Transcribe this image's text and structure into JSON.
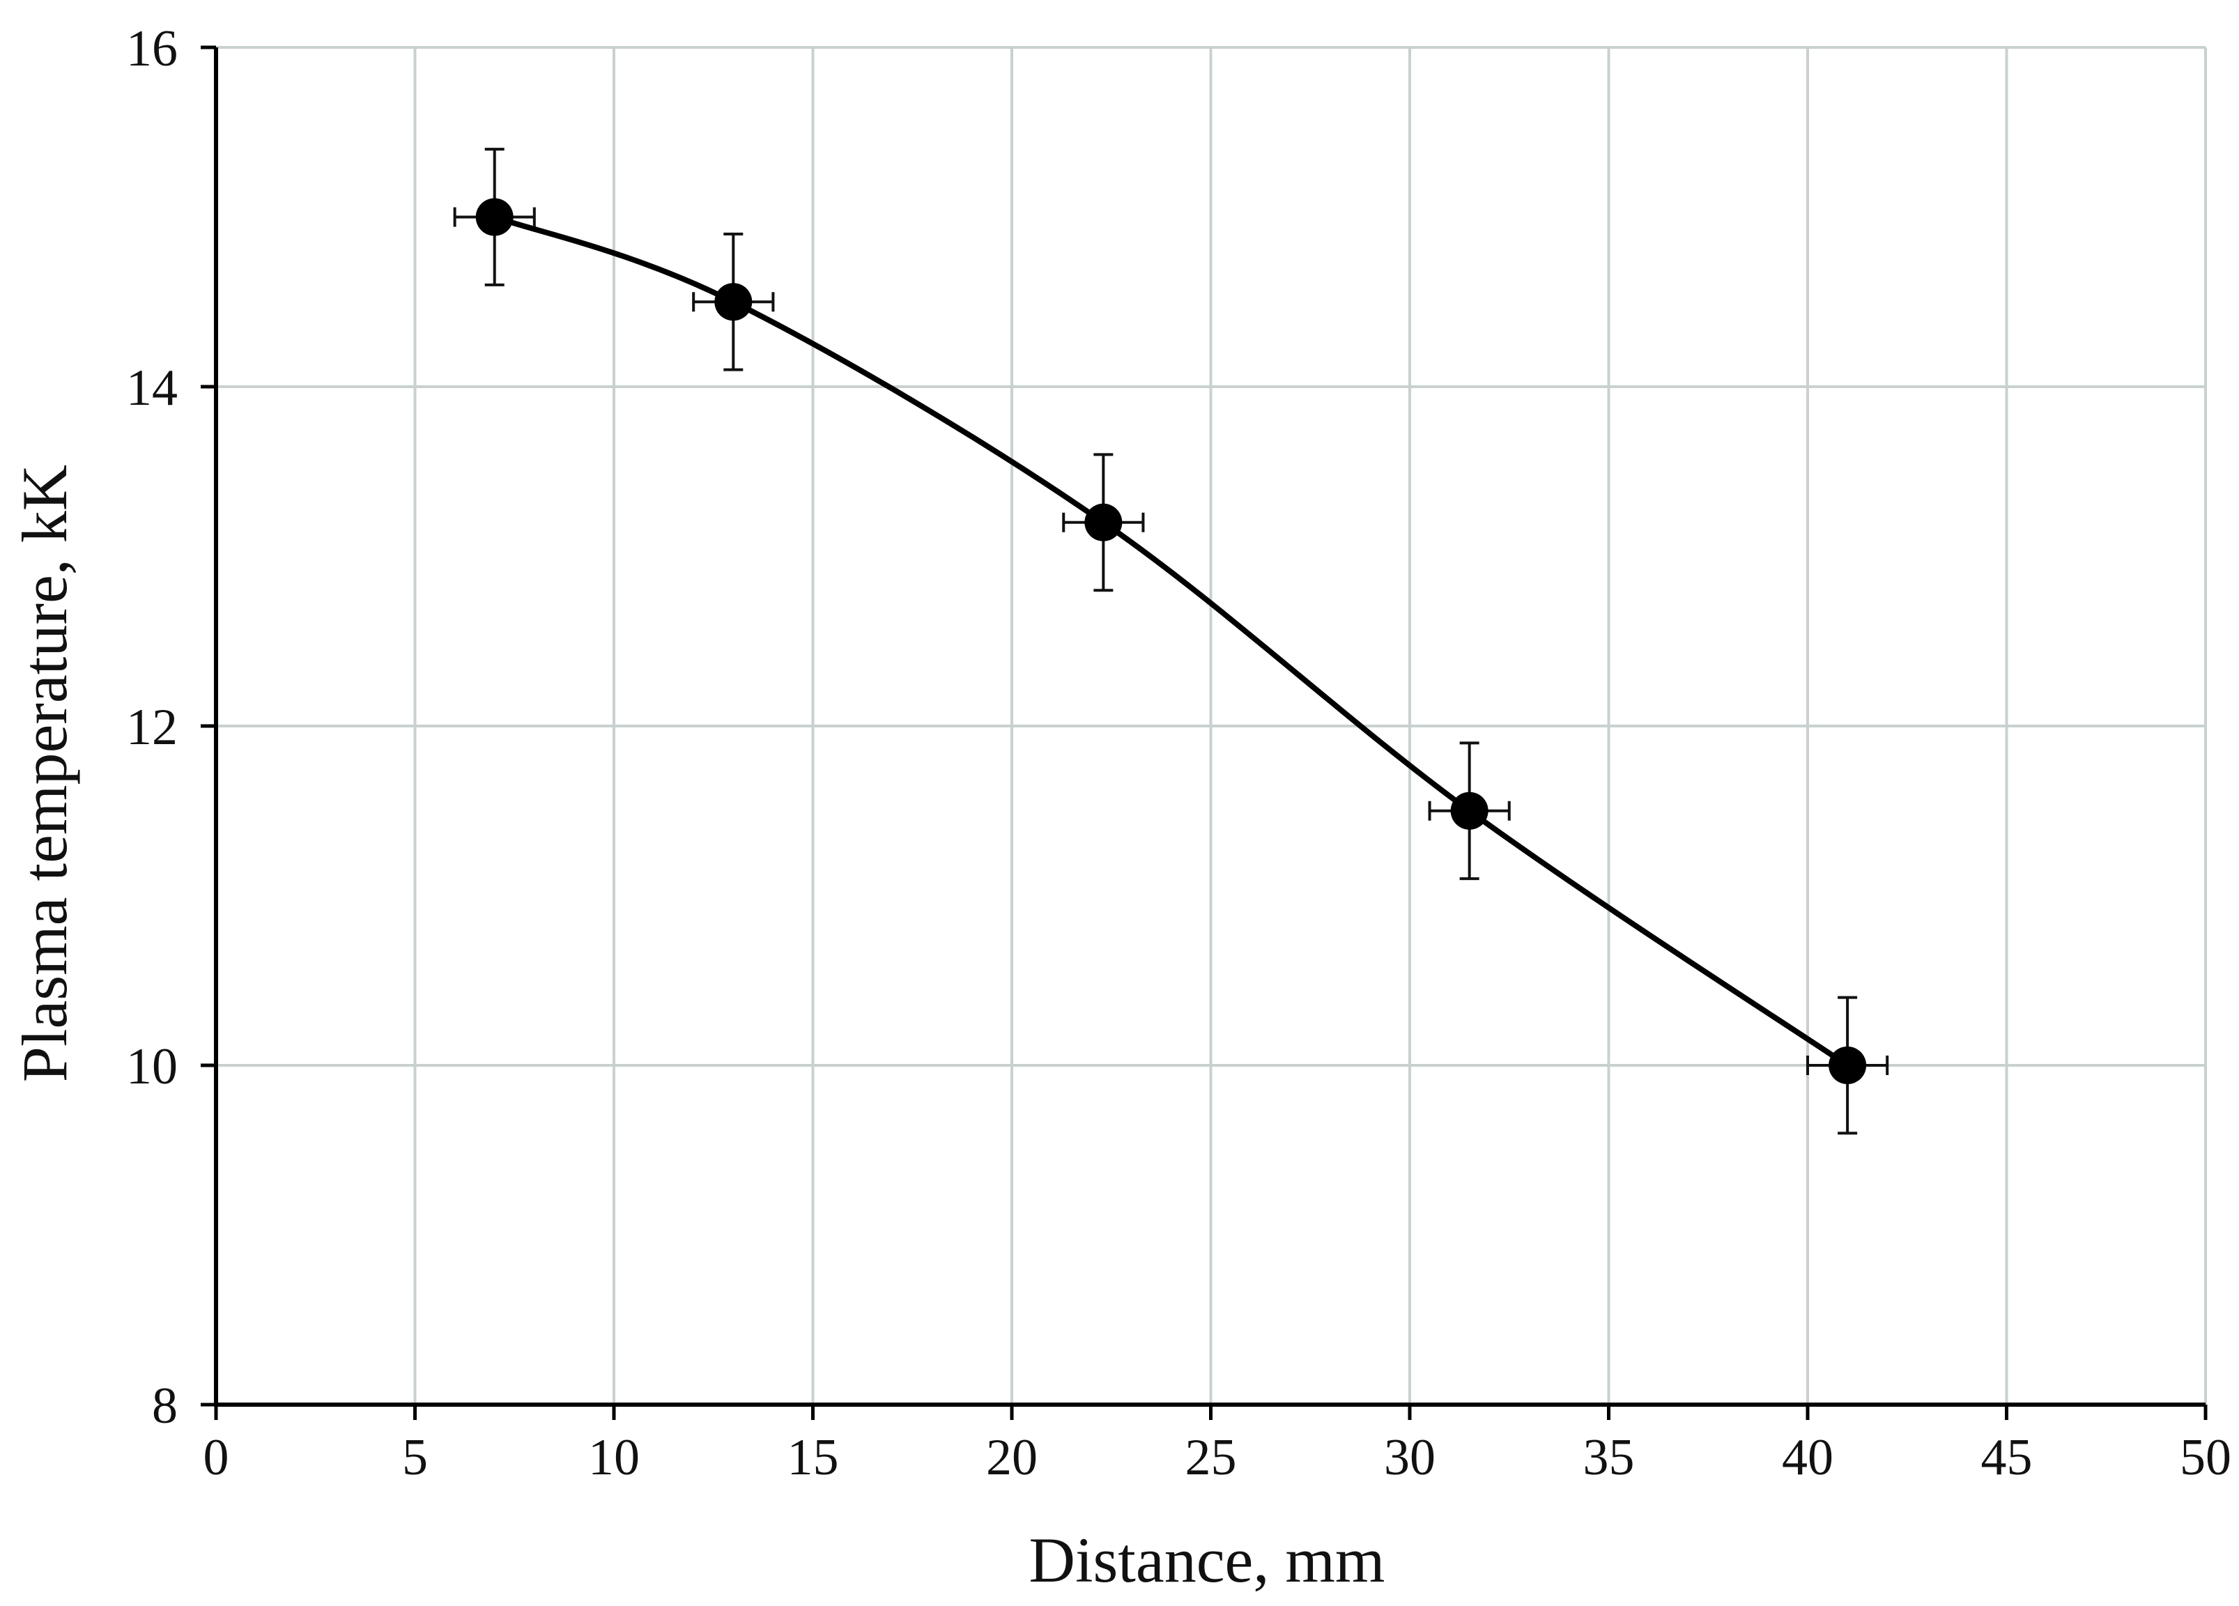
{
  "chart_data": {
    "type": "line",
    "title": "",
    "xlabel": "Distance, mm",
    "ylabel": "Plasma temperature, kK",
    "xlim": [
      0,
      50
    ],
    "ylim": [
      8,
      16
    ],
    "x_ticks": [
      "0",
      "5",
      "10",
      "15",
      "20",
      "25",
      "30",
      "35",
      "40",
      "45",
      "50"
    ],
    "y_ticks": [
      "8",
      "10",
      "12",
      "14",
      "16"
    ],
    "grid": true,
    "legend": "none",
    "smoothed_line": true,
    "series": [
      {
        "x": [
          7,
          13,
          22.3,
          31.5,
          41
        ],
        "y": [
          15.0,
          14.5,
          13.2,
          11.5,
          10.0
        ],
        "x_error": [
          1,
          1,
          1,
          1,
          1
        ],
        "y_error": [
          0.4,
          0.4,
          0.4,
          0.4,
          0.4
        ]
      }
    ],
    "colors": {
      "line": "#000000",
      "marker": "#000000",
      "grid": "#c9d0d0",
      "axis": "#000000"
    }
  }
}
